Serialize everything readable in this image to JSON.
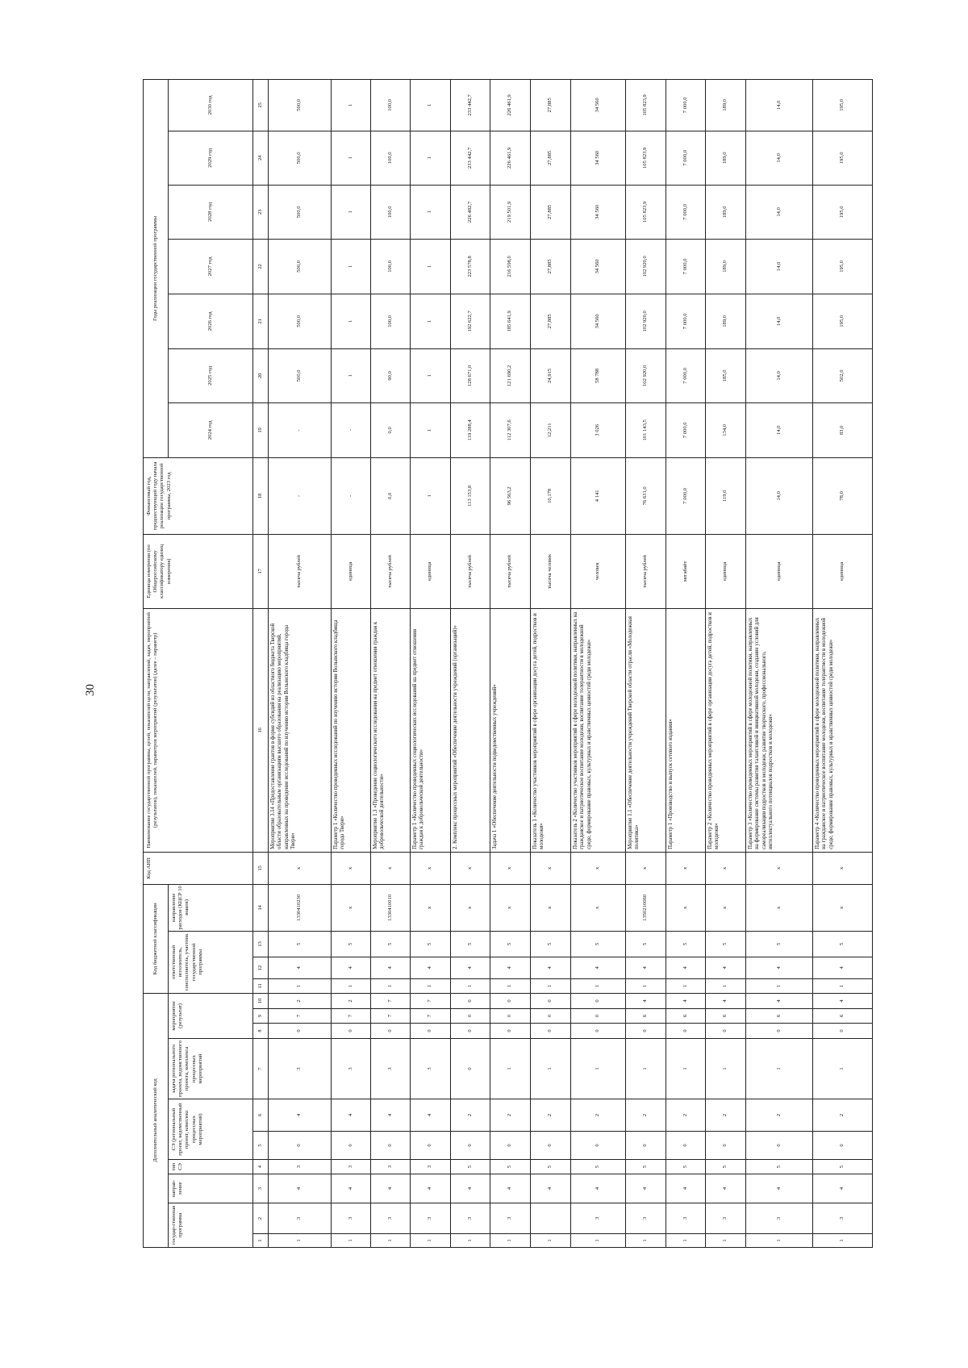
{
  "page_number": "30",
  "header": {
    "group_additional_code": "Дополнительный аналитический код",
    "group_budget_code": "Код бюджетной классификации",
    "col_aip": "Код АИП",
    "col_name": "Наименование государственной программы, целей, показателей цели, направлений, задач, мероприятий (результатов), показателей, параметров мероприятий (результатов) (далее – параметр)",
    "col_unit": "Единица измерения (по Общероссийскому классификатору единиц измерения)",
    "col_base_year": "Финансовый год, предшествующий году начала реализации государственной программы, 2023 год",
    "group_years": "Годы реализации государственной программы",
    "sub_program": "государ-ственная программа",
    "sub_direction": "направ-ление",
    "sub_se_type": "тип СЭ",
    "sub_se": "СЭ (региональный проект, ведомственный проект, комплекс процессных мероприятий)",
    "sub_task": "задача регионального проекта, ведомственного проекта, комплекса процессных мероприятий",
    "sub_event": "мероприятие (результат)",
    "sub_executor": "ответственный исполнитель, соисполнитель, участник государственной программы",
    "sub_expense": "направление расходов (КЦСР 10 знаков)",
    "years": [
      "2024 год",
      "2025 год",
      "2026 год",
      "2027 год",
      "2028 год",
      "2029 год",
      "2030 год"
    ],
    "col_numbers": [
      "1",
      "2",
      "3",
      "4",
      "5",
      "6",
      "7",
      "8",
      "9",
      "10",
      "11",
      "12",
      "13",
      "14",
      "15",
      "16",
      "17",
      "18",
      "19",
      "20",
      "21",
      "22",
      "23",
      "24",
      "25"
    ]
  },
  "rows": [
    {
      "codes": [
        "1",
        "3",
        "4",
        "3",
        "0",
        "4",
        "3",
        "0",
        "7",
        "2",
        "1",
        "4",
        "5",
        "1330410230",
        "x"
      ],
      "name": "Мероприятие 3.14 «Предоставление грантов в форме субсидий из областного бюджета Тверской области образовательным организациям высшего образования на реализацию мероприятий, направленных на проведение исследований по изучению истории Волынского кладбища города Твери»",
      "unit": "тысяча рублей",
      "values": [
        "-",
        "-",
        "500,0",
        "500,0",
        "500,0",
        "500,0",
        "500,0",
        "500,0"
      ]
    },
    {
      "codes": [
        "1",
        "3",
        "4",
        "3",
        "0",
        "4",
        "3",
        "0",
        "7",
        "2",
        "1",
        "4",
        "5",
        "x",
        "x"
      ],
      "name": "Параметр 1 «Количество проведенных исследований по изучению истории Волынского кладбища города Твери»",
      "unit": "единица",
      "values": [
        "-",
        "-",
        "1",
        "1",
        "1",
        "1",
        "1",
        "1"
      ]
    },
    {
      "codes": [
        "1",
        "3",
        "4",
        "3",
        "0",
        "4",
        "3",
        "0",
        "7",
        "7",
        "1",
        "4",
        "5",
        "1330410010",
        "x"
      ],
      "name": "Мероприятие 1.3 «Проведение социологического исследования на предмет отношения граждан к добровольческой деятельности»",
      "unit": "тысяча рублей",
      "values": [
        "0,0",
        "0,0",
        "90,0",
        "100,0",
        "100,0",
        "100,0",
        "100,0",
        "100,0"
      ]
    },
    {
      "codes": [
        "1",
        "3",
        "4",
        "3",
        "0",
        "4",
        "3",
        "0",
        "7",
        "7",
        "1",
        "4",
        "5",
        "x",
        "x"
      ],
      "name": "Параметр 1 «Количество проведенных социологических исследований на предмет отношения граждан к добровольческой деятельности»",
      "unit": "единица",
      "values": [
        "1",
        "1",
        "1",
        "1",
        "1",
        "1",
        "1",
        "1"
      ]
    },
    {
      "codes": [
        "1",
        "3",
        "4",
        "5",
        "0",
        "2",
        "0",
        "0",
        "0",
        "0",
        "1",
        "4",
        "5",
        "x",
        "x"
      ],
      "name": "2. Комплекс процессных мероприятий «Обеспечение деятельности учреждений (организаций)»",
      "unit": "тысяча рублей",
      "values": [
        "113 153,8",
        "119 288,4",
        "128 671,0",
        "192 622,7",
        "223 578,8",
        "226 482,7",
        "233 442,7",
        "233 442,7"
      ]
    },
    {
      "codes": [
        "1",
        "3",
        "4",
        "5",
        "0",
        "2",
        "1",
        "0",
        "0",
        "0",
        "1",
        "4",
        "5",
        "x",
        "x"
      ],
      "name": "Задача 1 «Обеспечение деятельности подведомственных учреждений»",
      "unit": "тысяча рублей",
      "values": [
        "96 563,2",
        "112 307,6",
        "121 690,2",
        "185 641,9",
        "216 598,0",
        "219 501,9",
        "226 461,9",
        "226 461,9"
      ]
    },
    {
      "codes": [
        "1",
        "",
        "4",
        "5",
        "0",
        "2",
        "1",
        "0",
        "0",
        "0",
        "1",
        "4",
        "5",
        "x",
        "x"
      ],
      "name": "Показатель 1 «Количество участников мероприятий в сфере организации досуга детей, подростков и молодежи»",
      "unit": "тысяча человек",
      "values": [
        "10,178",
        "12,211",
        "24,915",
        "27,885",
        "27,885",
        "27,885",
        "27,885",
        "27,885"
      ]
    },
    {
      "codes": [
        "1",
        "3",
        "4",
        "5",
        "0",
        "2",
        "1",
        "0",
        "0",
        "0",
        "1",
        "4",
        "5",
        "x",
        "x"
      ],
      "name": "Показатель 2 «Количество участников мероприятий в сфере молодежной политики, направленных на гражданское и патриотическое воспитание молодежи, воспитание толерантности в молодежной среде, формирование правовых, культурных и нравственных ценностей среди молодежи»",
      "unit": "человек",
      "values": [
        "4 141",
        "3 026",
        "58 788",
        "34 560",
        "34 560",
        "34 560",
        "34 560",
        "34 560"
      ]
    },
    {
      "codes": [
        "1",
        "3",
        "4",
        "5",
        "0",
        "2",
        "1",
        "0",
        "6",
        "4",
        "1",
        "4",
        "5",
        "1350210060",
        "x"
      ],
      "name": "Мероприятие 1.1 «Обеспечение деятельности учреждений Тверской области отрасли «Молодежная политика»",
      "unit": "тысяча рублей",
      "values": [
        "76 631,0",
        "101 143,5",
        "102 920,0",
        "102 920,0",
        "102 920,0",
        "105 823,9",
        "105 823,9",
        "105 823,9"
      ]
    },
    {
      "codes": [
        "1",
        "3",
        "4",
        "5",
        "0",
        "2",
        "1",
        "0",
        "6",
        "4",
        "1",
        "4",
        "5",
        "x",
        "x"
      ],
      "name": "Параметр 1 «Производство и выпуск сетевого издания»",
      "unit": "мегабайт",
      "values": [
        "7 000,0",
        "7 000,0",
        "7 000,0",
        "7 000,0",
        "7 000,0",
        "7 000,0",
        "7 000,0",
        "7 000,0"
      ]
    },
    {
      "codes": [
        "1",
        "3",
        "4",
        "5",
        "0",
        "2",
        "1",
        "0",
        "6",
        "4",
        "1",
        "4",
        "5",
        "x",
        "x"
      ],
      "name": "Параметр 2 «Количество проведенных мероприятий в сфере организации досуга детей, подростков и молодежи»",
      "unit": "единица",
      "values": [
        "119,0",
        "134,0",
        "185,0",
        "189,0",
        "189,0",
        "189,0",
        "189,0",
        "189,0"
      ]
    },
    {
      "codes": [
        "1",
        "3",
        "4",
        "5",
        "0",
        "2",
        "1",
        "0",
        "6",
        "4",
        "1",
        "4",
        "5",
        "x",
        "x"
      ],
      "name": "Параметр 3 «Количество проведенных мероприятий в сфере молодежной политики, направленных на формирование системы развития талантливой и инициативной молодежи, создание условий для самореализации подростков и молодежи, развитие творческого, профессионального, интеллектуального потенциалов подростков и молодежи»",
      "unit": "единица",
      "values": [
        "14,0",
        "14,0",
        "14,0",
        "14,0",
        "14,0",
        "14,0",
        "14,0",
        "14,0"
      ]
    },
    {
      "codes": [
        "1",
        "3",
        "4",
        "5",
        "0",
        "2",
        "1",
        "0",
        "6",
        "4",
        "1",
        "4",
        "5",
        "x",
        "x"
      ],
      "name": "Параметр 4 «Количество проведенных мероприятий в сфере молодежной политики, направленных на гражданское и патриотическое воспитание молодежи, воспитание толерантности в молодежной среде, формирование правовых, культурных и нравственных ценностей среди молодежи»",
      "unit": "единица",
      "values": [
        "78,0",
        "83,0",
        "502,0",
        "195,0",
        "195,0",
        "195,0",
        "195,0",
        "195,0"
      ]
    }
  ]
}
